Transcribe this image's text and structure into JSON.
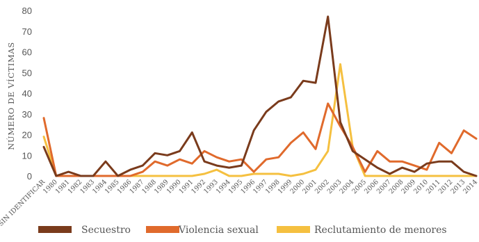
{
  "chart_data": {
    "type": "line",
    "ylabel": "NÚMERO DE VÍCTIMAS",
    "xlabel": "",
    "ylim": [
      0,
      80
    ],
    "yticks": [
      0,
      10,
      20,
      30,
      40,
      50,
      60,
      70,
      80
    ],
    "grid": false,
    "legend_position": "bottom",
    "categories": [
      "SIN IDENTIFICAR",
      "1980",
      "1981",
      "1982",
      "1983",
      "1984",
      "1985",
      "1986",
      "1987",
      "1988",
      "1989",
      "1990",
      "1991",
      "1992",
      "1993",
      "1994",
      "1995",
      "1996",
      "1997",
      "1998",
      "1999",
      "2000",
      "2001",
      "2002",
      "2003",
      "2004",
      "2005",
      "2006",
      "2007",
      "2008",
      "2009",
      "2010",
      "2011",
      "2012",
      "2013",
      "2014"
    ],
    "series": [
      {
        "name": "Secuestro",
        "color": "#7a3b1c",
        "values": [
          14,
          0,
          2,
          0,
          0,
          7,
          0,
          3,
          5,
          11,
          10,
          12,
          21,
          7,
          5,
          4,
          5,
          22,
          31,
          36,
          38,
          46,
          45,
          77,
          26,
          12,
          8,
          4,
          1,
          4,
          2,
          6,
          7,
          7,
          2,
          0
        ]
      },
      {
        "name": "Violencia sexual",
        "color": "#e06a2c",
        "values": [
          28,
          0,
          0,
          0,
          0,
          0,
          0,
          0,
          2,
          7,
          5,
          8,
          6,
          12,
          9,
          7,
          8,
          2,
          8,
          9,
          16,
          21,
          13,
          35,
          24,
          14,
          2,
          12,
          7,
          7,
          5,
          3,
          16,
          11,
          22,
          18
        ]
      },
      {
        "name": "Reclutamiento de menores",
        "color": "#f5c040",
        "values": [
          19,
          0,
          0,
          0,
          0,
          0,
          0,
          0,
          0,
          0,
          0,
          0,
          0,
          1,
          3,
          0,
          0,
          1,
          1,
          1,
          0,
          1,
          3,
          12,
          54,
          14,
          0,
          0,
          0,
          0,
          0,
          0,
          0,
          0,
          0,
          0
        ]
      }
    ]
  }
}
